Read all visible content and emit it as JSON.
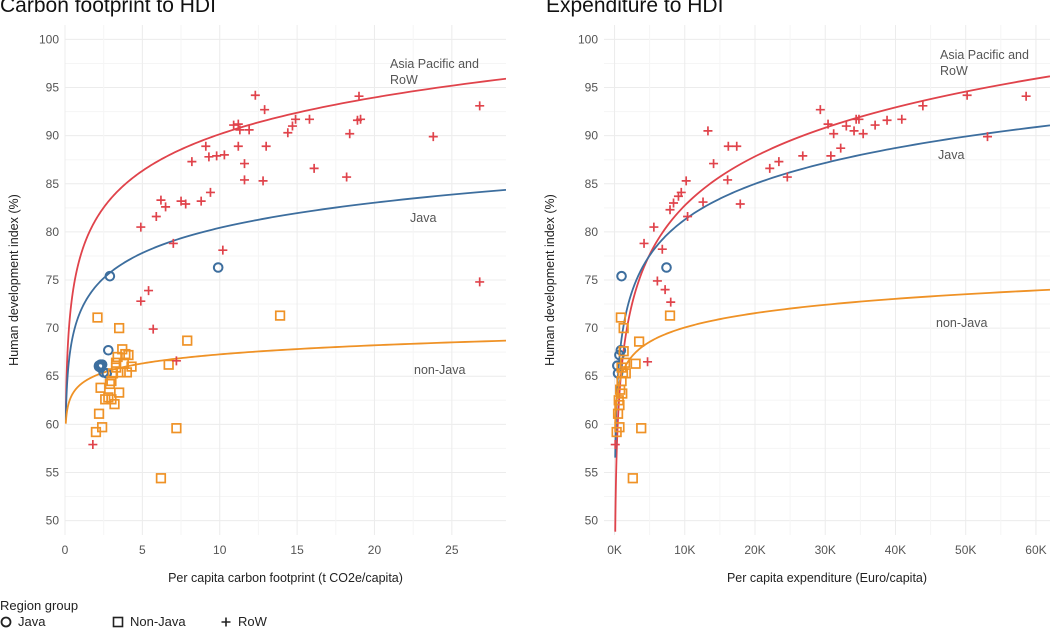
{
  "chart_data": [
    {
      "type": "scatter",
      "title": "Carbon footprint to HDI",
      "xlabel": "Per capita carbon footprint (t CO2e/capita)",
      "ylabel": "Human development index (%)",
      "xlim": [
        0,
        28.5
      ],
      "ylim": [
        48.5,
        101.5
      ],
      "xticks": [
        0,
        5,
        10,
        15,
        20,
        25
      ],
      "xtick_labels": [
        "0",
        "5",
        "10",
        "15",
        "20",
        "25"
      ],
      "yticks": [
        50,
        55,
        60,
        65,
        70,
        75,
        80,
        85,
        90,
        95,
        100
      ],
      "ytick_labels": [
        "50",
        "55",
        "60",
        "65",
        "70",
        "75",
        "80",
        "85",
        "90",
        "95",
        "100"
      ],
      "series": [
        {
          "name": "Java",
          "marker": "circle",
          "color": "#3d6e9e",
          "points": [
            [
              2.2,
              66.1
            ],
            [
              2.4,
              66.2
            ],
            [
              2.3,
              66.0
            ],
            [
              2.3,
              65.9
            ],
            [
              2.2,
              66.0
            ],
            [
              2.3,
              66.2
            ],
            [
              2.5,
              65.4
            ],
            [
              2.7,
              65.3
            ],
            [
              2.8,
              67.7
            ],
            [
              2.9,
              75.4
            ],
            [
              9.9,
              76.3
            ]
          ]
        },
        {
          "name": "Non-Java",
          "marker": "square",
          "color": "#ef9226",
          "points": [
            [
              2.0,
              59.2
            ],
            [
              2.1,
              71.1
            ],
            [
              2.2,
              61.1
            ],
            [
              2.3,
              63.8
            ],
            [
              2.4,
              59.7
            ],
            [
              2.6,
              62.6
            ],
            [
              2.8,
              62.8
            ],
            [
              2.9,
              64.2
            ],
            [
              3.0,
              64.5
            ],
            [
              3.0,
              62.6
            ],
            [
              3.1,
              65.3
            ],
            [
              3.2,
              62.1
            ],
            [
              3.3,
              66.4
            ],
            [
              3.3,
              65.9
            ],
            [
              3.4,
              67.0
            ],
            [
              3.5,
              63.3
            ],
            [
              3.5,
              70.0
            ],
            [
              3.6,
              65.4
            ],
            [
              3.7,
              67.8
            ],
            [
              3.8,
              66.3
            ],
            [
              3.9,
              67.3
            ],
            [
              4.0,
              65.4
            ],
            [
              4.1,
              67.2
            ],
            [
              4.3,
              66.0
            ],
            [
              6.2,
              54.4
            ],
            [
              6.7,
              66.2
            ],
            [
              7.2,
              59.6
            ],
            [
              7.9,
              68.7
            ],
            [
              13.9,
              71.3
            ]
          ]
        },
        {
          "name": "RoW",
          "marker": "plus",
          "color": "#e0434b",
          "points": [
            [
              1.8,
              57.9
            ],
            [
              4.9,
              72.8
            ],
            [
              4.9,
              80.5
            ],
            [
              5.4,
              73.9
            ],
            [
              5.7,
              69.9
            ],
            [
              5.9,
              81.6
            ],
            [
              6.2,
              83.3
            ],
            [
              6.5,
              82.6
            ],
            [
              7.0,
              78.8
            ],
            [
              7.2,
              66.6
            ],
            [
              7.5,
              83.2
            ],
            [
              7.8,
              82.9
            ],
            [
              8.2,
              87.3
            ],
            [
              8.8,
              83.2
            ],
            [
              9.1,
              88.9
            ],
            [
              9.3,
              87.8
            ],
            [
              9.4,
              84.1
            ],
            [
              9.8,
              87.9
            ],
            [
              10.2,
              78.1
            ],
            [
              10.3,
              88.0
            ],
            [
              10.9,
              91.1
            ],
            [
              11.2,
              88.9
            ],
            [
              11.2,
              91.2
            ],
            [
              11.3,
              90.6
            ],
            [
              11.6,
              87.1
            ],
            [
              11.6,
              85.4
            ],
            [
              11.9,
              90.6
            ],
            [
              12.3,
              94.2
            ],
            [
              12.8,
              85.3
            ],
            [
              13.0,
              88.9
            ],
            [
              12.9,
              92.7
            ],
            [
              14.4,
              90.3
            ],
            [
              14.7,
              91.0
            ],
            [
              14.9,
              91.7
            ],
            [
              15.8,
              91.7
            ],
            [
              16.1,
              86.6
            ],
            [
              18.2,
              85.7
            ],
            [
              18.4,
              90.2
            ],
            [
              18.9,
              91.6
            ],
            [
              19.1,
              91.7
            ],
            [
              19.0,
              94.1
            ],
            [
              23.8,
              89.9
            ],
            [
              26.8,
              93.1
            ],
            [
              26.8,
              74.8
            ]
          ]
        }
      ],
      "curves": [
        {
          "name": "Asia Pacific and RoW",
          "label_lines": [
            "Asia Pacific and",
            "RoW"
          ],
          "color": "#e0434b",
          "x_start": 0.05,
          "x_end": 28.5,
          "a": 77.49,
          "b": 5.5
        },
        {
          "name": "Java",
          "label_lines": [
            "Java"
          ],
          "color": "#3d6e9e",
          "x_start": 0.05,
          "x_end": 28.5,
          "a": 71.74,
          "b": 3.77
        },
        {
          "name": "non-Java",
          "label_lines": [
            "non-Java"
          ],
          "color": "#ef9226",
          "x_start": 0.05,
          "x_end": 28.5,
          "a": 64.14,
          "b": 1.36
        }
      ]
    },
    {
      "type": "scatter",
      "title": "Expenditure to HDI",
      "xlabel": "Per capita expenditure (Euro/capita)",
      "ylabel": "Human development index (%)",
      "xlim": [
        -1500,
        62000
      ],
      "ylim": [
        48.5,
        101.5
      ],
      "xticks": [
        0,
        10000,
        20000,
        30000,
        40000,
        50000,
        60000
      ],
      "xtick_labels": [
        "0K",
        "10K",
        "20K",
        "30K",
        "40K",
        "50K",
        "60K"
      ],
      "yticks": [
        50,
        55,
        60,
        65,
        70,
        75,
        80,
        85,
        90,
        95,
        100
      ],
      "ytick_labels": [
        "50",
        "55",
        "60",
        "65",
        "70",
        "75",
        "80",
        "85",
        "90",
        "95",
        "100"
      ],
      "series": [
        {
          "name": "Java",
          "marker": "circle",
          "color": "#3d6e9e",
          "points": [
            [
              400,
              66.1
            ],
            [
              500,
              65.3
            ],
            [
              700,
              67.2
            ],
            [
              900,
              67.7
            ],
            [
              1000,
              75.4
            ],
            [
              7400,
              76.3
            ]
          ]
        },
        {
          "name": "Non-Java",
          "marker": "square",
          "color": "#ef9226",
          "points": [
            [
              300,
              59.2
            ],
            [
              500,
              61.1
            ],
            [
              600,
              62.5
            ],
            [
              700,
              62.0
            ],
            [
              800,
              63.6
            ],
            [
              900,
              71.1
            ],
            [
              1000,
              65.9
            ],
            [
              1100,
              63.2
            ],
            [
              1200,
              65.3
            ],
            [
              1300,
              67.6
            ],
            [
              1300,
              70.0
            ],
            [
              1500,
              66.4
            ],
            [
              1600,
              65.3
            ],
            [
              2600,
              54.4
            ],
            [
              3000,
              66.3
            ],
            [
              3500,
              68.6
            ],
            [
              3800,
              59.6
            ],
            [
              7900,
              71.3
            ],
            [
              700,
              59.7
            ],
            [
              1000,
              64.5
            ]
          ]
        },
        {
          "name": "RoW",
          "marker": "plus",
          "color": "#e0434b",
          "points": [
            [
              100,
              57.9
            ],
            [
              4200,
              78.8
            ],
            [
              4700,
              66.5
            ],
            [
              5600,
              80.5
            ],
            [
              6100,
              74.9
            ],
            [
              6800,
              78.2
            ],
            [
              7200,
              74.0
            ],
            [
              7900,
              82.3
            ],
            [
              8000,
              72.7
            ],
            [
              8400,
              83.0
            ],
            [
              9100,
              83.7
            ],
            [
              9500,
              84.1
            ],
            [
              10200,
              85.3
            ],
            [
              10400,
              81.6
            ],
            [
              12600,
              83.1
            ],
            [
              13300,
              90.5
            ],
            [
              14100,
              87.1
            ],
            [
              16100,
              85.4
            ],
            [
              16200,
              88.9
            ],
            [
              17400,
              88.9
            ],
            [
              17900,
              82.9
            ],
            [
              22100,
              86.6
            ],
            [
              23400,
              87.3
            ],
            [
              24600,
              85.7
            ],
            [
              26800,
              87.9
            ],
            [
              29300,
              92.7
            ],
            [
              30400,
              91.2
            ],
            [
              30800,
              87.9
            ],
            [
              31200,
              90.2
            ],
            [
              32200,
              88.7
            ],
            [
              33000,
              91.0
            ],
            [
              34100,
              90.5
            ],
            [
              34400,
              91.7
            ],
            [
              34800,
              91.7
            ],
            [
              35400,
              90.2
            ],
            [
              37100,
              91.1
            ],
            [
              38800,
              91.6
            ],
            [
              40900,
              91.7
            ],
            [
              43900,
              93.1
            ],
            [
              50200,
              94.2
            ],
            [
              53100,
              89.9
            ],
            [
              58600,
              94.1
            ]
          ]
        }
      ],
      "curves": [
        {
          "name": "Asia Pacific and RoW",
          "label_lines": [
            "Asia Pacific and",
            "RoW"
          ],
          "color": "#e0434b",
          "x_start": 100,
          "x_end": 62000,
          "a": 14.95,
          "b": 7.36
        },
        {
          "name": "Java",
          "label_lines": [
            "Java"
          ],
          "color": "#3d6e9e",
          "x_start": 100,
          "x_end": 62000,
          "a": 31.81,
          "b": 5.37
        },
        {
          "name": "non-Java",
          "label_lines": [
            "non-Java"
          ],
          "color": "#ef9226",
          "x_start": 100,
          "x_end": 62000,
          "a": 50.26,
          "b": 2.15
        }
      ]
    }
  ],
  "legend": {
    "title": "Region group",
    "items": [
      {
        "label": "Java",
        "marker": "circle",
        "color": "#222222"
      },
      {
        "label": "Non-Java",
        "marker": "square",
        "color": "#222222"
      },
      {
        "label": "RoW",
        "marker": "plus",
        "color": "#222222"
      }
    ]
  }
}
